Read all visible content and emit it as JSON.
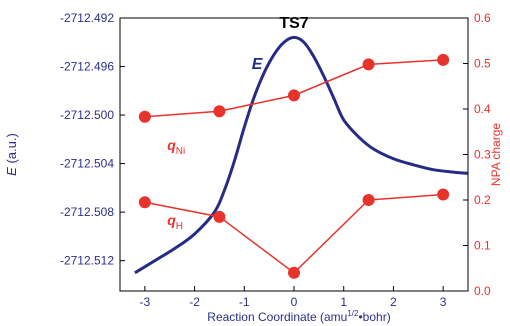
{
  "colors": {
    "energy": "#262c86",
    "charge": "#e8322c",
    "axis_left_text": "#2b2f8a",
    "axis_right_text": "#e8322c",
    "frame": "#000000"
  },
  "chart_data": {
    "type": "line",
    "xlabel_main": "Reaction Coordinate (amu",
    "xlabel_sup": "1/2",
    "xlabel_tail": "•bohr)",
    "ylabel_left_main": "E",
    "ylabel_left_unit": " (a.u.)",
    "ylabel_right": "NPA charge",
    "xlim": [
      -3.5,
      3.5
    ],
    "ylim_left": [
      -2712.5145,
      -2712.492
    ],
    "ylim_right": [
      0.0,
      0.6
    ],
    "x_ticks": [
      -3,
      -2,
      -1,
      0,
      1,
      2,
      3
    ],
    "x_tick_labels": [
      "-3",
      "-2",
      "-1",
      "0",
      "1",
      "2",
      "3"
    ],
    "y_left_ticks": [
      -2712.492,
      -2712.496,
      -2712.5,
      -2712.504,
      -2712.508,
      -2712.512
    ],
    "y_left_tick_labels": [
      "-2712.492",
      "-2712.496",
      "-2712.500",
      "-2712.504",
      "-2712.508",
      "-2712.512"
    ],
    "y_right_ticks": [
      0.0,
      0.1,
      0.2,
      0.3,
      0.4,
      0.5,
      0.6
    ],
    "y_right_tick_labels": [
      "0.0",
      "0.1",
      "0.2",
      "0.3",
      "0.4",
      "0.5",
      "0.6"
    ],
    "series": [
      {
        "name": "E",
        "axis": "left",
        "x": [
          -3.2,
          -2.8,
          -2.4,
          -2.0,
          -1.6,
          -1.4,
          -1.2,
          -1.0,
          -0.8,
          -0.6,
          -0.4,
          -0.2,
          0.0,
          0.2,
          0.4,
          0.6,
          0.8,
          1.0,
          1.3,
          1.6,
          2.0,
          2.4,
          2.8,
          3.2,
          3.5
        ],
        "y": [
          -2712.513,
          -2712.512,
          -2712.511,
          -2712.5098,
          -2712.508,
          -2712.5062,
          -2712.5038,
          -2712.501,
          -2712.4985,
          -2712.4965,
          -2712.495,
          -2712.494,
          -2712.4936,
          -2712.494,
          -2712.4952,
          -2712.4968,
          -2712.4986,
          -2712.5004,
          -2712.5018,
          -2712.5028,
          -2712.5036,
          -2712.5041,
          -2712.5045,
          -2712.5047,
          -2712.5048
        ]
      },
      {
        "name": "q",
        "subscript": "Ni",
        "axis": "right",
        "x": [
          -3.0,
          -1.5,
          0.0,
          1.5,
          3.0
        ],
        "y": [
          0.383,
          0.395,
          0.43,
          0.498,
          0.508
        ]
      },
      {
        "name": "q",
        "subscript": "H",
        "axis": "right",
        "x": [
          -3.0,
          -1.5,
          0.0,
          1.5,
          3.0
        ],
        "y": [
          0.195,
          0.163,
          0.04,
          0.2,
          0.212
        ]
      }
    ],
    "annotations": [
      {
        "text": "TS7",
        "x": 0.0,
        "y_left": -2712.493
      }
    ]
  }
}
